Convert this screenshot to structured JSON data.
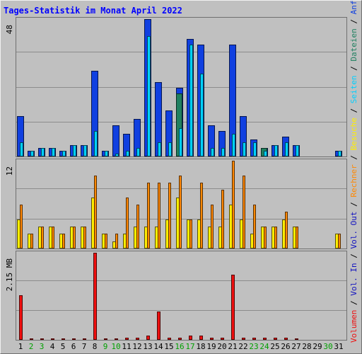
{
  "chart_data": {
    "type": "bar",
    "title": "Tages-Statistik im Monat April 2022",
    "days": [
      "1",
      "2",
      "3",
      "4",
      "5",
      "6",
      "7",
      "8",
      "9",
      "10",
      "11",
      "12",
      "13",
      "14",
      "15",
      "16",
      "17",
      "18",
      "19",
      "20",
      "21",
      "22",
      "23",
      "24",
      "25",
      "26",
      "27",
      "28",
      "29",
      "30",
      "31"
    ],
    "weekend_days": [
      "2",
      "3",
      "9",
      "10",
      "16",
      "17",
      "23",
      "24",
      "30"
    ],
    "panels": [
      {
        "id": "top",
        "ylim": [
          0,
          48
        ],
        "max_label": "48",
        "series": [
          {
            "name": "Anfragen",
            "color": "#1040e0",
            "values": [
              14,
              2,
              3,
              3,
              2,
              4,
              4,
              30,
              2,
              11,
              8,
              13,
              48,
              26,
              16,
              24,
              41,
              39,
              11,
              9,
              39,
              14,
              6,
              3,
              4,
              7,
              4,
              0,
              0,
              0,
              2
            ]
          },
          {
            "name": "Dateien",
            "color": "#208060",
            "values": [
              0,
              0,
              0,
              0,
              0,
              0,
              0,
              0,
              0,
              0,
              0,
              0,
              0,
              0,
              0,
              22,
              0,
              0,
              0,
              0,
              0,
              0,
              0,
              3,
              0,
              0,
              0,
              0,
              0,
              0,
              0
            ]
          },
          {
            "name": "Seiten",
            "color": "#00d0ff",
            "values": [
              5,
              2,
              3,
              3,
              2,
              4,
              4,
              9,
              2,
              1,
              2,
              3,
              42,
              5,
              5,
              10,
              39,
              29,
              3,
              3,
              8,
              5,
              5,
              2,
              4,
              5,
              4,
              0,
              0,
              0,
              2
            ]
          }
        ]
      },
      {
        "id": "middle",
        "ylim": [
          0,
          12
        ],
        "max_label": "12",
        "series": [
          {
            "name": "Besuche",
            "color": "#ffee00",
            "values": [
              4,
              2,
              3,
              3,
              2,
              3,
              3,
              7,
              2,
              1,
              2,
              3,
              3,
              3,
              4,
              7,
              4,
              4,
              3,
              3,
              6,
              4,
              2,
              3,
              3,
              4,
              3,
              0,
              0,
              0,
              2
            ]
          },
          {
            "name": "Rechner",
            "color": "#ff8800",
            "values": [
              6,
              2,
              3,
              3,
              2,
              3,
              3,
              10,
              2,
              2,
              7,
              6,
              9,
              9,
              9,
              10,
              4,
              9,
              6,
              8,
              12,
              10,
              6,
              3,
              3,
              5,
              3,
              0,
              0,
              0,
              2
            ]
          }
        ]
      },
      {
        "id": "bottom",
        "ylim": [
          0,
          2.15
        ],
        "max_label": "2.15 MB",
        "series": [
          {
            "name": "Vol. Out",
            "color": "#1010c0",
            "values": [
              0,
              0,
              0,
              0,
              0,
              0,
              0,
              0,
              0,
              0,
              0,
              0,
              0,
              0,
              0,
              0,
              0,
              0,
              0,
              0,
              0,
              0,
              0,
              0,
              0,
              0,
              0,
              0,
              0,
              0,
              0
            ]
          },
          {
            "name": "Vol. In",
            "color": "#1010c0",
            "values": [
              0,
              0,
              0,
              0,
              0,
              0,
              0,
              0,
              0,
              0,
              0,
              0,
              0,
              0,
              0,
              0,
              0,
              0,
              0,
              0,
              0,
              0,
              0,
              0,
              0,
              0,
              0,
              0,
              0,
              0,
              0
            ]
          },
          {
            "name": "Volumen",
            "color": "#ee1010",
            "values": [
              1.1,
              0.04,
              0.04,
              0.04,
              0.04,
              0.04,
              0.04,
              2.15,
              0.04,
              0.04,
              0.05,
              0.06,
              0.1,
              0.7,
              0.06,
              0.06,
              0.1,
              0.1,
              0.06,
              0.06,
              1.6,
              0.05,
              0.05,
              0.05,
              0.05,
              0.06,
              0.04,
              0,
              0,
              0,
              0
            ]
          }
        ]
      }
    ],
    "legend": [
      "Volumen",
      "Vol. In",
      "Vol. Out",
      "Rechner",
      "Besuche",
      "Seiten",
      "Dateien",
      "Anfragen"
    ],
    "legend_separator": "/",
    "colors": {
      "background": "#c0c0c0",
      "frame_light": "#f0f0f0",
      "frame_dark": "#707070",
      "grid": "#8c8c8c",
      "title": "#0000ff",
      "weekday_label": "#000000",
      "weekend_label": "#00a000"
    }
  }
}
